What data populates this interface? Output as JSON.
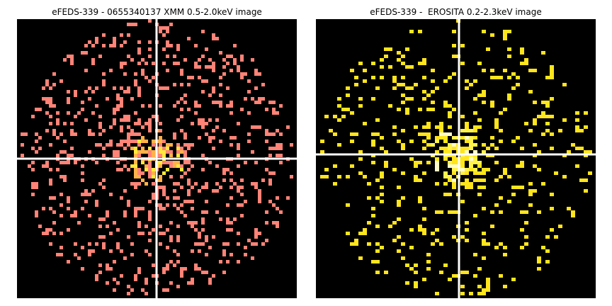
{
  "panels": [
    {
      "title": "eFEDS-339 - 0655340137 XMM 0.5-2.0keV image",
      "instrument": "XMM",
      "energy_band": "0.5-2.0keV",
      "colors": {
        "background": "#000000",
        "low": "#ff8377",
        "mid": "#ffb24a",
        "high": "#ffe93b",
        "crosshair": "#ffffff"
      }
    },
    {
      "title": "eFEDS-339 -  EROSITA 0.2-2.3keV image",
      "instrument": "EROSITA",
      "energy_band": "0.2-2.3keV",
      "colors": {
        "background": "#000000",
        "low": "#ffe51c",
        "mid": "#fff24a",
        "high": "#fffbc8",
        "crosshair": "#ffffff"
      }
    }
  ]
}
